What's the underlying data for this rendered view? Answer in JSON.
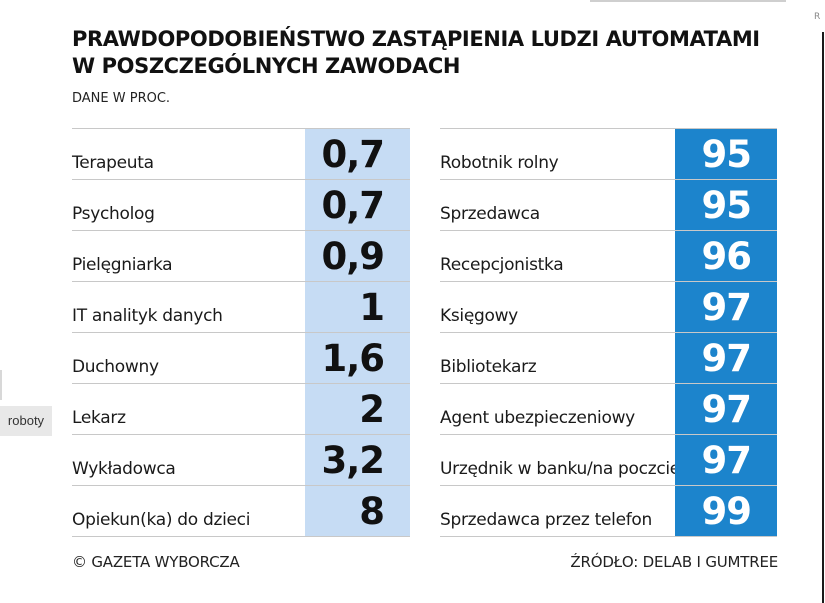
{
  "corner_mark": "R",
  "side_tag": "roboty",
  "chart_data": {
    "type": "table",
    "title": "PRAWDOPODOBIEŃSTWO ZASTĄPIENIA LUDZI AUTOMATAMI W POSZCZEGÓLNYCH ZAWODACH",
    "subtitle": "DANE W PROC.",
    "unit": "%",
    "colors": {
      "low_fill": "#c6dcf4",
      "high_fill": "#1c84cc",
      "high_text": "#ffffff"
    },
    "low": [
      {
        "label": "Terapeuta",
        "value": 0.7,
        "display": "0,7"
      },
      {
        "label": "Psycholog",
        "value": 0.7,
        "display": "0,7"
      },
      {
        "label": "Pielęgniarka",
        "value": 0.9,
        "display": "0,9"
      },
      {
        "label": "IT analityk danych",
        "value": 1,
        "display": "1"
      },
      {
        "label": "Duchowny",
        "value": 1.6,
        "display": "1,6"
      },
      {
        "label": "Lekarz",
        "value": 2,
        "display": "2"
      },
      {
        "label": "Wykładowca",
        "value": 3.2,
        "display": "3,2"
      },
      {
        "label": "Opiekun(ka) do dzieci",
        "value": 8,
        "display": "8"
      }
    ],
    "high": [
      {
        "label": "Robotnik rolny",
        "value": 95,
        "display": "95"
      },
      {
        "label": "Sprzedawca",
        "value": 95,
        "display": "95"
      },
      {
        "label": "Recepcjonistka",
        "value": 96,
        "display": "96"
      },
      {
        "label": "Księgowy",
        "value": 97,
        "display": "97"
      },
      {
        "label": "Bibliotekarz",
        "value": 97,
        "display": "97"
      },
      {
        "label": "Agent ubezpieczeniowy",
        "value": 97,
        "display": "97"
      },
      {
        "label": "Urzędnik w banku/na poczcie",
        "value": 97,
        "display": "97"
      },
      {
        "label": "Sprzedawca przez telefon",
        "value": 99,
        "display": "99"
      }
    ]
  },
  "footer": {
    "copyright": "© GAZETA WYBORCZA",
    "source": "ŹRÓDŁO: DELAB I GUMTREE"
  }
}
